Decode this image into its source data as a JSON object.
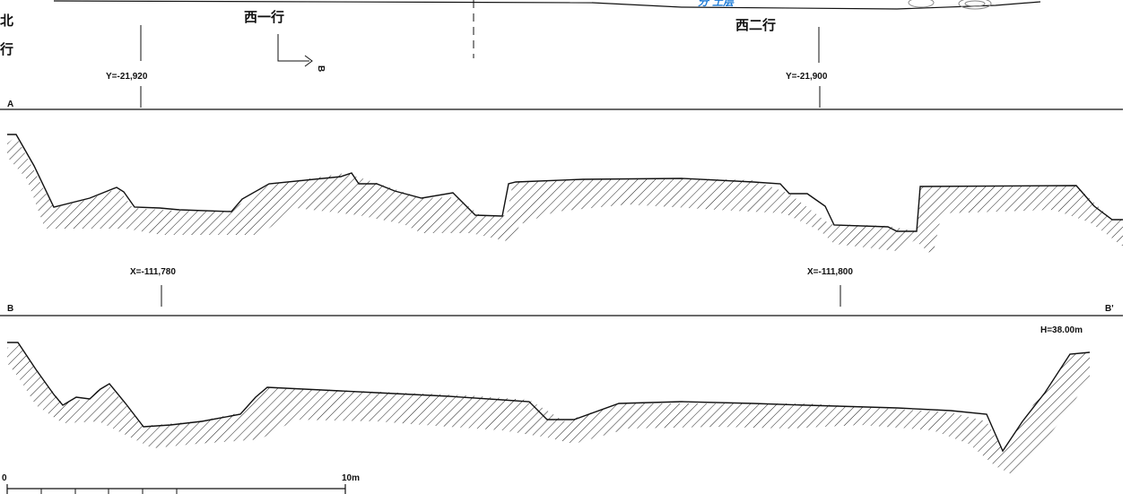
{
  "top_strip": {
    "labels_cjk": [
      "西一行",
      "西二行"
    ],
    "left_vertical_cjk": "北\n行",
    "blue_fragment": "分 土层",
    "cut_marker": "B"
  },
  "section_a": {
    "start_label": "A",
    "grid_labels": [
      "Y=-21,920",
      "Y=-21,900"
    ]
  },
  "section_b": {
    "start_label": "B",
    "end_label": "B'",
    "grid_labels": [
      "X=-111,780",
      "X=-111,800"
    ],
    "datum": "H=38.00m"
  },
  "scale_bar": {
    "start_label": "0",
    "end_label": "10m"
  },
  "colors": {
    "line": "#1a1a1a",
    "hatch": "#222222",
    "accent_blue": "#1e7bd6"
  }
}
